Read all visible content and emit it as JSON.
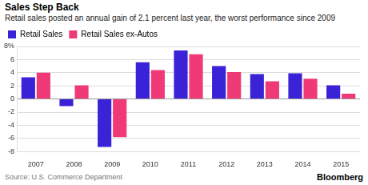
{
  "chart_data": {
    "type": "bar",
    "title": "Sales Step Back",
    "subtitle": "Retail sales posted an annual gain of 2.1 percent last year, the worst performance since 2009",
    "categories": [
      "2007",
      "2008",
      "2009",
      "2010",
      "2011",
      "2012",
      "2013",
      "2014",
      "2015"
    ],
    "series": [
      {
        "name": "Retail Sales",
        "color": "#3a22d6",
        "values": [
          3.3,
          -1.1,
          -7.3,
          5.6,
          7.4,
          5.0,
          3.8,
          3.9,
          2.1
        ]
      },
      {
        "name": "Retail Sales ex-Autos",
        "color": "#f03a78",
        "values": [
          4.0,
          2.1,
          -5.8,
          4.4,
          6.8,
          4.1,
          2.7,
          3.1,
          0.8
        ]
      }
    ],
    "ylim": [
      -8,
      8
    ],
    "yticks": [
      -8,
      -6,
      -4,
      -2,
      0,
      2,
      4,
      6,
      {
        "value": 8,
        "label": "8%"
      }
    ],
    "grid": true,
    "legend": "top-left",
    "source": "Source: U.S. Commerce Department",
    "credit": "Bloomberg"
  }
}
